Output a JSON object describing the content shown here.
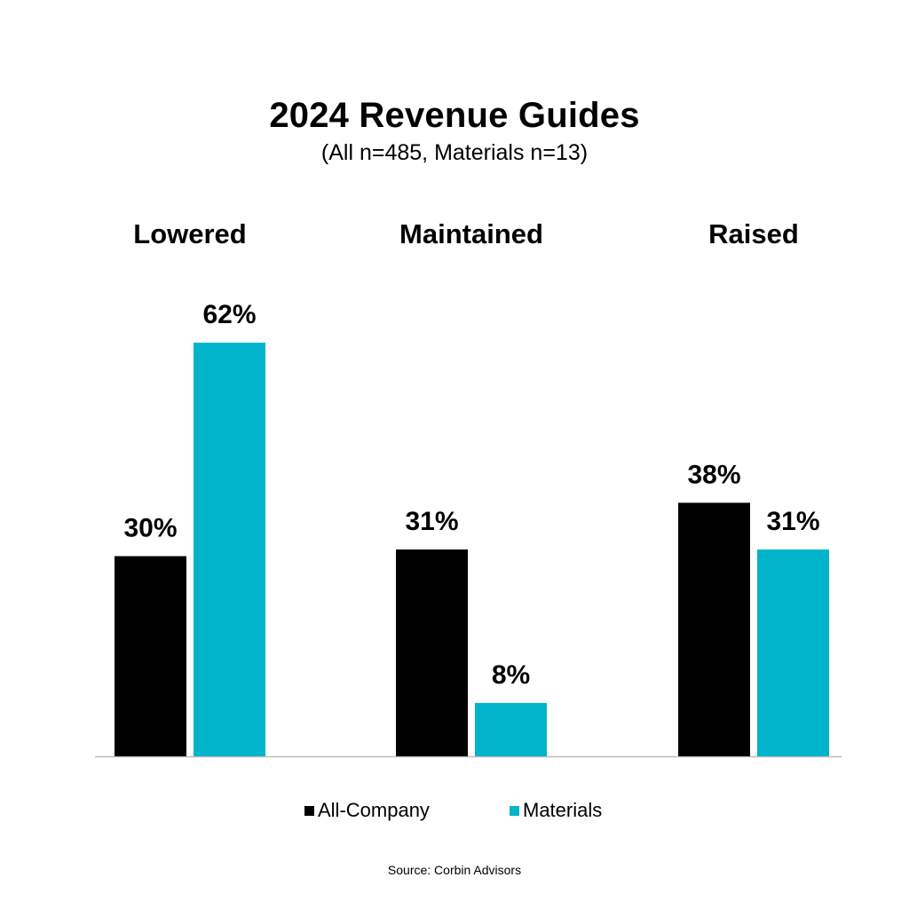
{
  "chart_data": {
    "type": "bar",
    "title": "2024 Revenue Guides",
    "subtitle": "(All n=485, Materials n=13)",
    "categories": [
      "Lowered",
      "Maintained",
      "Raised"
    ],
    "series": [
      {
        "name": "All-Company",
        "color": "#000000",
        "values": [
          30,
          31,
          38
        ],
        "labels": [
          "30%",
          "31%",
          "38%"
        ]
      },
      {
        "name": "Materials",
        "color": "#00b4cc",
        "values": [
          62,
          8,
          31
        ],
        "labels": [
          "62%",
          "8%",
          "31%"
        ]
      }
    ],
    "xlabel": "",
    "ylabel": "",
    "ylim": [
      0,
      62
    ],
    "grid": false,
    "legend_position": "bottom",
    "source": "Source: Corbin Advisors"
  }
}
